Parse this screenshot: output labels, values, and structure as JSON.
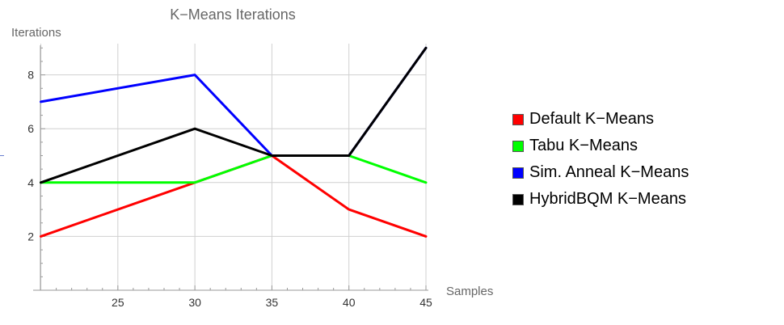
{
  "chart_data": {
    "type": "line",
    "title": "K−Means Iterations",
    "xlabel": "Samples",
    "ylabel": "Iterations",
    "x": [
      20,
      30,
      35,
      40,
      45
    ],
    "xlim": [
      19.5,
      45
    ],
    "ylim": [
      0,
      9.4
    ],
    "xticks": [
      25,
      30,
      35,
      40,
      45
    ],
    "yticks": [
      2,
      4,
      6,
      8
    ],
    "grid": true,
    "legend_position": "right",
    "series": [
      {
        "name": "Default K−Means",
        "color": "#ff0000",
        "values": [
          2,
          4,
          5,
          3,
          2
        ]
      },
      {
        "name": "Tabu K−Means",
        "color": "#00ff00",
        "values": [
          4,
          4,
          5,
          5,
          4
        ]
      },
      {
        "name": "Sim. Anneal K−Means",
        "color": "#0000ff",
        "values": [
          7,
          8,
          5,
          5,
          9
        ]
      },
      {
        "name": "HybridBQM K−Means",
        "color": "#000000",
        "values": [
          4,
          6,
          5,
          5,
          9
        ]
      }
    ]
  }
}
